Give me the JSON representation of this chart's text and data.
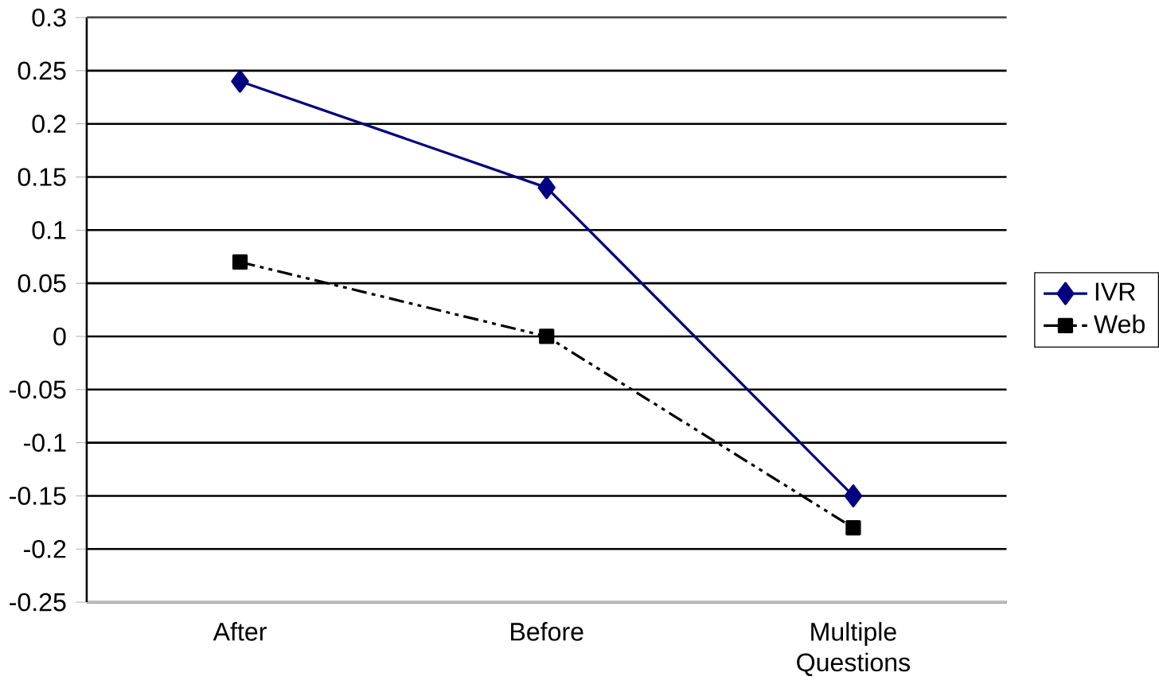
{
  "chart_data": {
    "type": "line",
    "categories": [
      "After",
      "Before",
      "Multiple Questions"
    ],
    "series": [
      {
        "name": "IVR",
        "color": "#000080",
        "values": [
          0.24,
          0.14,
          -0.15
        ],
        "marker": "diamond",
        "line_style": "solid"
      },
      {
        "name": "Web",
        "color": "#000000",
        "values": [
          0.07,
          0.0,
          -0.18
        ],
        "marker": "square",
        "line_style": "dashed"
      }
    ],
    "ylim": [
      -0.25,
      0.3
    ],
    "yticks": [
      -0.25,
      -0.2,
      -0.15,
      -0.1,
      -0.05,
      0,
      0.05,
      0.1,
      0.15,
      0.2,
      0.25,
      0.3
    ],
    "grid": "y",
    "legend": "right"
  }
}
